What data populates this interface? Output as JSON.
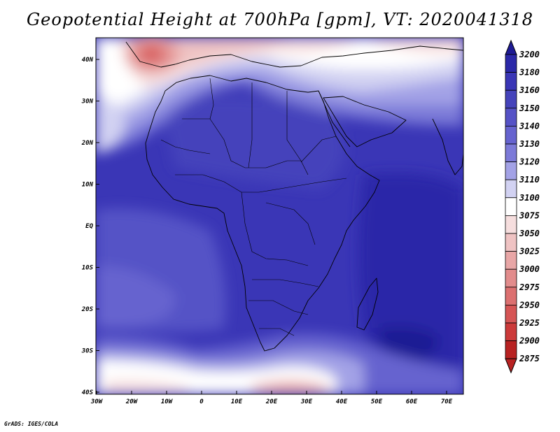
{
  "title": "Geopotential Height at 700hPa [gpm], VT: 2020041318",
  "footer": "GrADS: IGES/COLA",
  "map": {
    "lon_range": [
      -30,
      75
    ],
    "lat_range": [
      -40,
      45
    ],
    "lon_ticks": [
      "30W",
      "20W",
      "10W",
      "0",
      "10E",
      "20E",
      "30E",
      "40E",
      "50E",
      "60E",
      "70E"
    ],
    "lat_ticks": [
      "40N",
      "30N",
      "20N",
      "10N",
      "EQ",
      "10S",
      "20S",
      "30S",
      "40S"
    ]
  },
  "colorbar": {
    "levels": [
      "3200",
      "3180",
      "3160",
      "3150",
      "3140",
      "3130",
      "3120",
      "3110",
      "3100",
      "3075",
      "3050",
      "3025",
      "3000",
      "2975",
      "2950",
      "2925",
      "2900",
      "2875"
    ],
    "colors": [
      "#1e1a94",
      "#2b28a8",
      "#3a36b6",
      "#4543bb",
      "#5552c6",
      "#6663cf",
      "#7c7ad8",
      "#a3a2e6",
      "#d2d2f2",
      "#ffffff",
      "#f6dede",
      "#efc3c3",
      "#e8a6a6",
      "#e28c8c",
      "#dc7070",
      "#d65555",
      "#cc3a3a",
      "#b82222"
    ]
  },
  "colors": {
    "high": "#3a36b6",
    "low": "#cc3a3a",
    "neutral": "#ffffff",
    "coastline": "#000000"
  }
}
